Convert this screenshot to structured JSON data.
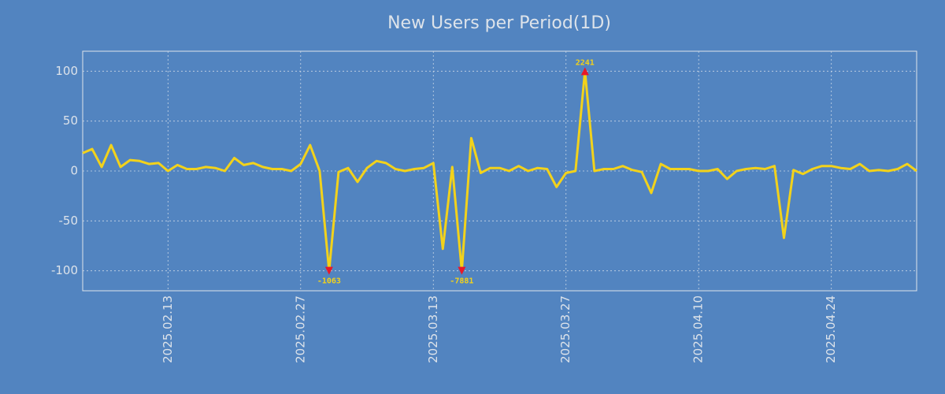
{
  "chart_data": {
    "type": "line",
    "title": "New Users per Period(1D)",
    "x": [
      "2025.02.04",
      "2025.02.05",
      "2025.02.06",
      "2025.02.07",
      "2025.02.08",
      "2025.02.09",
      "2025.02.10",
      "2025.02.11",
      "2025.02.12",
      "2025.02.13",
      "2025.02.14",
      "2025.02.15",
      "2025.02.16",
      "2025.02.17",
      "2025.02.18",
      "2025.02.19",
      "2025.02.20",
      "2025.02.21",
      "2025.02.22",
      "2025.02.23",
      "2025.02.24",
      "2025.02.25",
      "2025.02.26",
      "2025.02.27",
      "2025.02.28",
      "2025.03.01",
      "2025.03.02",
      "2025.03.03",
      "2025.03.04",
      "2025.03.05",
      "2025.03.06",
      "2025.03.07",
      "2025.03.08",
      "2025.03.09",
      "2025.03.10",
      "2025.03.11",
      "2025.03.12",
      "2025.03.13",
      "2025.03.14",
      "2025.03.15",
      "2025.03.16",
      "2025.03.17",
      "2025.03.18",
      "2025.03.19",
      "2025.03.20",
      "2025.03.21",
      "2025.03.22",
      "2025.03.23",
      "2025.03.24",
      "2025.03.25",
      "2025.03.26",
      "2025.03.27",
      "2025.03.28",
      "2025.03.29",
      "2025.03.30",
      "2025.03.31",
      "2025.04.01",
      "2025.04.02",
      "2025.04.03",
      "2025.04.04",
      "2025.04.05",
      "2025.04.06",
      "2025.04.07",
      "2025.04.08",
      "2025.04.09",
      "2025.04.10",
      "2025.04.11",
      "2025.04.12",
      "2025.04.13",
      "2025.04.14",
      "2025.04.15",
      "2025.04.16",
      "2025.04.17",
      "2025.04.18",
      "2025.04.19",
      "2025.04.20",
      "2025.04.21",
      "2025.04.22",
      "2025.04.23",
      "2025.04.24",
      "2025.04.25",
      "2025.04.26",
      "2025.04.27",
      "2025.04.28",
      "2025.04.29",
      "2025.04.30",
      "2025.05.01",
      "2025.05.02",
      "2025.05.03"
    ],
    "values": [
      18,
      22,
      4,
      26,
      4,
      11,
      10,
      7,
      8,
      0,
      6,
      2,
      2,
      4,
      3,
      0,
      13,
      6,
      8,
      4,
      2,
      2,
      0,
      7,
      26,
      0,
      -100,
      -1,
      3,
      -11,
      3,
      10,
      8,
      2,
      0,
      2,
      3,
      8,
      -78,
      4,
      -100,
      33,
      -2,
      3,
      3,
      0,
      5,
      0,
      3,
      2,
      -16,
      -2,
      0,
      100,
      0,
      2,
      2,
      5,
      1,
      -1,
      -22,
      7,
      2,
      2,
      2,
      0,
      0,
      2,
      -8,
      0,
      2,
      3,
      2,
      5,
      -67,
      1,
      -3,
      2,
      5,
      5,
      3,
      2,
      7,
      0,
      1,
      0,
      2,
      7,
      0
    ],
    "color": "#f2d21b",
    "xlim": [
      "2025.02.04",
      "2025.05.03"
    ],
    "xticks": [
      "2025.02.13",
      "2025.02.27",
      "2025.03.13",
      "2025.03.27",
      "2025.04.10",
      "2025.04.24"
    ],
    "ylim": [
      -120,
      120
    ],
    "yticks": [
      -100,
      -50,
      0,
      50,
      100
    ],
    "grid": true,
    "annotations": [
      {
        "x": "2025.03.02",
        "y": -100,
        "text": "-1063"
      },
      {
        "x": "2025.03.16",
        "y": -100,
        "text": "-7881"
      },
      {
        "x": "2025.03.29",
        "y": 100,
        "text": "2241"
      }
    ]
  }
}
